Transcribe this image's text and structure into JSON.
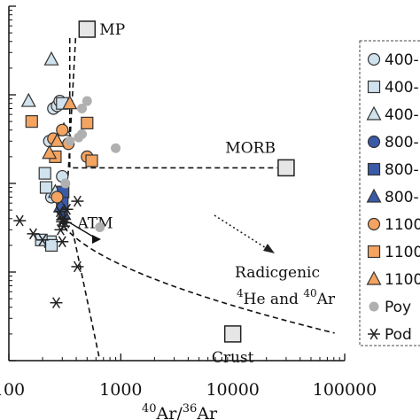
{
  "chart_data": {
    "type": "scatter",
    "x_scale": "log",
    "y_scale": "log",
    "xlim": [
      100,
      100000
    ],
    "ylim": [
      0.1,
      1000
    ],
    "x_ticks": [
      100,
      1000,
      10000,
      100000
    ],
    "x_tick_labels": [
      "100",
      "1000",
      "10000",
      "100000"
    ],
    "xlabel_parts": [
      "40",
      "Ar/",
      "36",
      "Ar"
    ],
    "series": [
      {
        "name": "400-",
        "marker": "circle",
        "fill": "#cfe2ee",
        "points": [
          [
            230,
            30
          ],
          [
            250,
            70
          ],
          [
            270,
            75
          ],
          [
            285,
            85
          ],
          [
            300,
            12
          ],
          [
            240,
            7
          ]
        ]
      },
      {
        "name": "400-",
        "marker": "square",
        "fill": "#cfe2ee",
        "points": [
          [
            210,
            13
          ],
          [
            300,
            80
          ],
          [
            215,
            9
          ],
          [
            235,
            2.2
          ],
          [
            195,
            2.3
          ],
          [
            240,
            2.0
          ]
        ]
      },
      {
        "name": "400-",
        "marker": "triangle",
        "fill": "#cfe2ee",
        "points": [
          [
            240,
            250
          ],
          [
            150,
            85
          ],
          [
            310,
            40
          ],
          [
            260,
            8
          ]
        ]
      },
      {
        "name": "800-",
        "marker": "circle",
        "fill": "#3a5aa8",
        "points": [
          [
            300,
            5
          ]
        ]
      },
      {
        "name": "800-",
        "marker": "square",
        "fill": "#3a5aa8",
        "points": [
          [
            305,
            8
          ],
          [
            300,
            6
          ]
        ]
      },
      {
        "name": "800-",
        "marker": "triangle",
        "fill": "#3a5aa8",
        "points": [
          [
            290,
            5.5
          ],
          [
            310,
            4.5
          ]
        ]
      },
      {
        "name": "1100",
        "marker": "circle",
        "fill": "#f4a460",
        "points": [
          [
            250,
            32
          ],
          [
            300,
            40
          ],
          [
            340,
            28
          ],
          [
            500,
            20
          ],
          [
            270,
            7
          ]
        ]
      },
      {
        "name": "1100",
        "marker": "square",
        "fill": "#f4a460",
        "points": [
          [
            160,
            50
          ],
          [
            500,
            48
          ],
          [
            550,
            18
          ],
          [
            260,
            20
          ]
        ]
      },
      {
        "name": "1100",
        "marker": "triangle",
        "fill": "#f4a460",
        "points": [
          [
            350,
            80
          ],
          [
            230,
            22
          ],
          [
            270,
            30
          ]
        ]
      },
      {
        "name": "Poy",
        "marker": "dot",
        "fill": "#b0b0b0",
        "points": [
          [
            500,
            85
          ],
          [
            450,
            70
          ],
          [
            900,
            25
          ],
          [
            350,
            30
          ],
          [
            450,
            36
          ],
          [
            650,
            3.2
          ],
          [
            320,
            10
          ],
          [
            420,
            33
          ]
        ]
      },
      {
        "name": "Pod",
        "marker": "asterisk",
        "fill": "#222222",
        "points": [
          [
            125,
            3.8
          ],
          [
            165,
            2.7
          ],
          [
            200,
            2.3
          ],
          [
            410,
            6.3
          ],
          [
            300,
            3.9
          ],
          [
            310,
            3.3
          ],
          [
            300,
            3.7
          ],
          [
            330,
            5.1
          ],
          [
            285,
            4.8
          ],
          [
            310,
            4.0
          ],
          [
            290,
            3.0
          ],
          [
            320,
            3.6
          ],
          [
            300,
            2.2
          ],
          [
            410,
            1.15
          ],
          [
            265,
            0.45
          ]
        ]
      }
    ],
    "end_members": [
      {
        "label": "MP",
        "x": 500,
        "y": 550
      },
      {
        "label": "MORB",
        "x": 30000,
        "y": 15
      },
      {
        "label": "Crust",
        "x": 10000,
        "y": 0.2
      },
      {
        "label": "ATM",
        "x": 295.5,
        "y": 3.5
      }
    ],
    "radiogenic_label": {
      "line1": "Radicgenic",
      "line2_parts": [
        "4",
        "He and ",
        "40",
        "Ar"
      ]
    }
  }
}
